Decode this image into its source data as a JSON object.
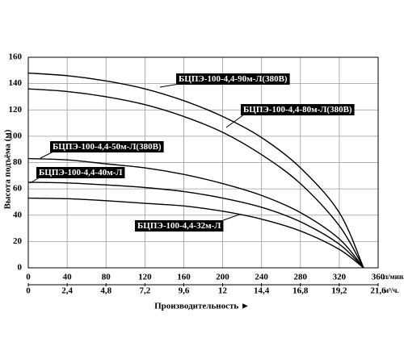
{
  "chart_data": {
    "type": "line",
    "y_label": "Высота подъёма (м)",
    "x_label": "Производительность ►",
    "x_unit": "л/мин.",
    "x2_unit": "м³/ч.",
    "x": [
      0,
      40,
      80,
      120,
      160,
      200,
      240,
      280,
      320,
      345
    ],
    "xlim": [
      0,
      360
    ],
    "xticks": [
      0,
      40,
      80,
      120,
      160,
      200,
      240,
      280,
      320,
      360
    ],
    "x2lim": [
      0,
      21.6
    ],
    "x2ticks": [
      0,
      {
        "value": 2.4,
        "label": "2,4"
      },
      {
        "value": 4.8,
        "label": "4,8"
      },
      {
        "value": 7.2,
        "label": "7,2"
      },
      {
        "value": 9.6,
        "label": "9,6"
      },
      12,
      {
        "value": 14.4,
        "label": "14,4"
      },
      {
        "value": 16.8,
        "label": "16,8"
      },
      {
        "value": 19.2,
        "label": "19,2"
      },
      {
        "value": 21.6,
        "label": "21,6"
      }
    ],
    "ylim": [
      0,
      160
    ],
    "yticks": [
      0,
      20,
      40,
      60,
      80,
      100,
      120,
      140,
      160
    ],
    "grid": true,
    "series": [
      {
        "name": "БЦПЭ-100-4,4-90м-Л(380В)",
        "color": "#000000",
        "values": [
          148,
          146,
          142,
          136,
          127,
          115,
          99,
          76,
          42,
          0
        ]
      },
      {
        "name": "БЦПЭ-100-4,4-80м-Л(380В)",
        "color": "#000000",
        "values": [
          136,
          134,
          130,
          124,
          115,
          103,
          86,
          64,
          32,
          0
        ]
      },
      {
        "name": "БЦПЭ-100-4,4-50м-Л(380В)",
        "color": "#000000",
        "values": [
          83,
          82,
          79,
          76,
          71,
          64,
          55,
          42,
          22,
          0
        ]
      },
      {
        "name": "БЦПЭ-100-4,4-40м-Л",
        "color": "#000000",
        "values": [
          65,
          64.5,
          63,
          61,
          58,
          53,
          46,
          35,
          18,
          0
        ]
      },
      {
        "name": "БЦПЭ-100-4,4-32м-Л",
        "color": "#000000",
        "values": [
          53,
          52.5,
          51,
          49,
          47,
          43,
          37,
          28,
          14,
          0
        ]
      }
    ]
  }
}
